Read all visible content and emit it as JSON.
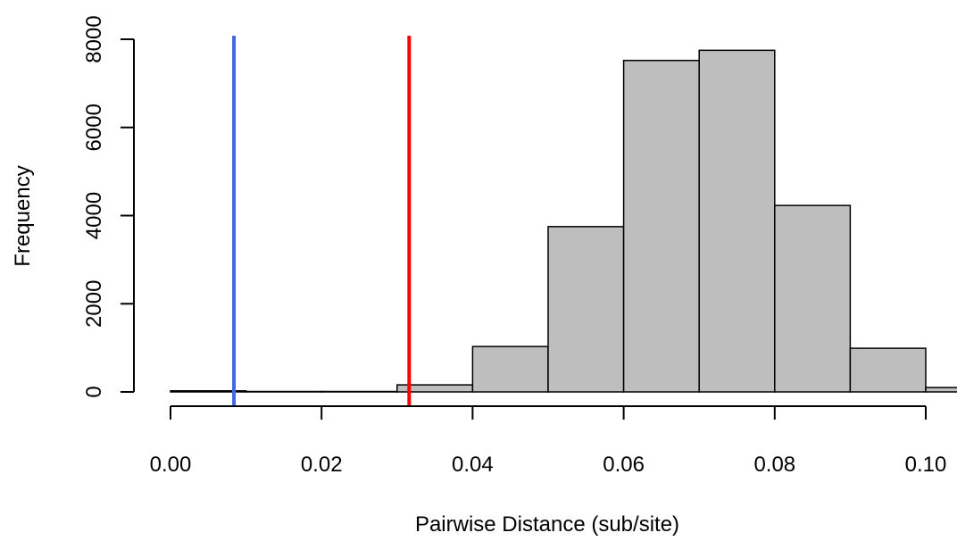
{
  "chart_data": {
    "type": "bar",
    "title": "",
    "xlabel": "Pairwise Distance (sub/site)",
    "ylabel": "Frequency",
    "xlim": [
      0,
      0.1
    ],
    "ylim": [
      0,
      8000
    ],
    "bin_width": 0.01,
    "bins": [
      {
        "x0": 0.0,
        "x1": 0.01,
        "count": 25
      },
      {
        "x0": 0.01,
        "x1": 0.02,
        "count": 10
      },
      {
        "x0": 0.02,
        "x1": 0.03,
        "count": 10
      },
      {
        "x0": 0.03,
        "x1": 0.04,
        "count": 160
      },
      {
        "x0": 0.04,
        "x1": 0.05,
        "count": 1030
      },
      {
        "x0": 0.05,
        "x1": 0.06,
        "count": 3750
      },
      {
        "x0": 0.06,
        "x1": 0.07,
        "count": 7520
      },
      {
        "x0": 0.07,
        "x1": 0.08,
        "count": 7750
      },
      {
        "x0": 0.08,
        "x1": 0.09,
        "count": 4230
      },
      {
        "x0": 0.09,
        "x1": 0.1,
        "count": 990
      },
      {
        "x0": 0.1,
        "x1": 0.11,
        "count": 100
      }
    ],
    "x_ticks": [
      {
        "value": 0.0,
        "label": "0.00"
      },
      {
        "value": 0.02,
        "label": "0.02"
      },
      {
        "value": 0.04,
        "label": "0.04"
      },
      {
        "value": 0.06,
        "label": "0.06"
      },
      {
        "value": 0.08,
        "label": "0.08"
      },
      {
        "value": 0.1,
        "label": "0.10"
      }
    ],
    "y_ticks": [
      {
        "value": 0,
        "label": "0"
      },
      {
        "value": 2000,
        "label": "2000"
      },
      {
        "value": 4000,
        "label": "4000"
      },
      {
        "value": 6000,
        "label": "6000"
      },
      {
        "value": 8000,
        "label": "8000"
      }
    ],
    "bar_color": "#bebebe",
    "bar_border": "#000000",
    "reference_lines": [
      {
        "value": 0.0084,
        "color": "#4169e1"
      },
      {
        "value": 0.0316,
        "color": "#ff0000"
      }
    ],
    "grid": false,
    "legend": "none"
  }
}
